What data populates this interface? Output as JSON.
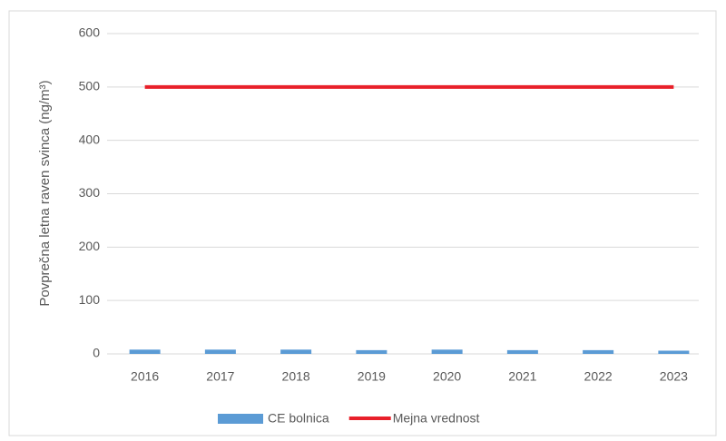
{
  "chart_data": {
    "type": "bar",
    "y_label": "Povprečna letna raven svinca (ng/m³)",
    "categories": [
      "2016",
      "2017",
      "2018",
      "2019",
      "2020",
      "2021",
      "2022",
      "2023"
    ],
    "series": [
      {
        "name": "CE bolnica",
        "type": "bar",
        "color": "#5b9bd5",
        "values": [
          8,
          8,
          8,
          7,
          8,
          7,
          7,
          6
        ]
      },
      {
        "name": "Mejna vrednost",
        "type": "line",
        "color": "#e8202a",
        "values": [
          500,
          500,
          500,
          500,
          500,
          500,
          500,
          500
        ]
      }
    ],
    "ylim": [
      0,
      600
    ],
    "yticks": [
      0,
      100,
      200,
      300,
      400,
      500,
      600
    ],
    "grid": true
  }
}
